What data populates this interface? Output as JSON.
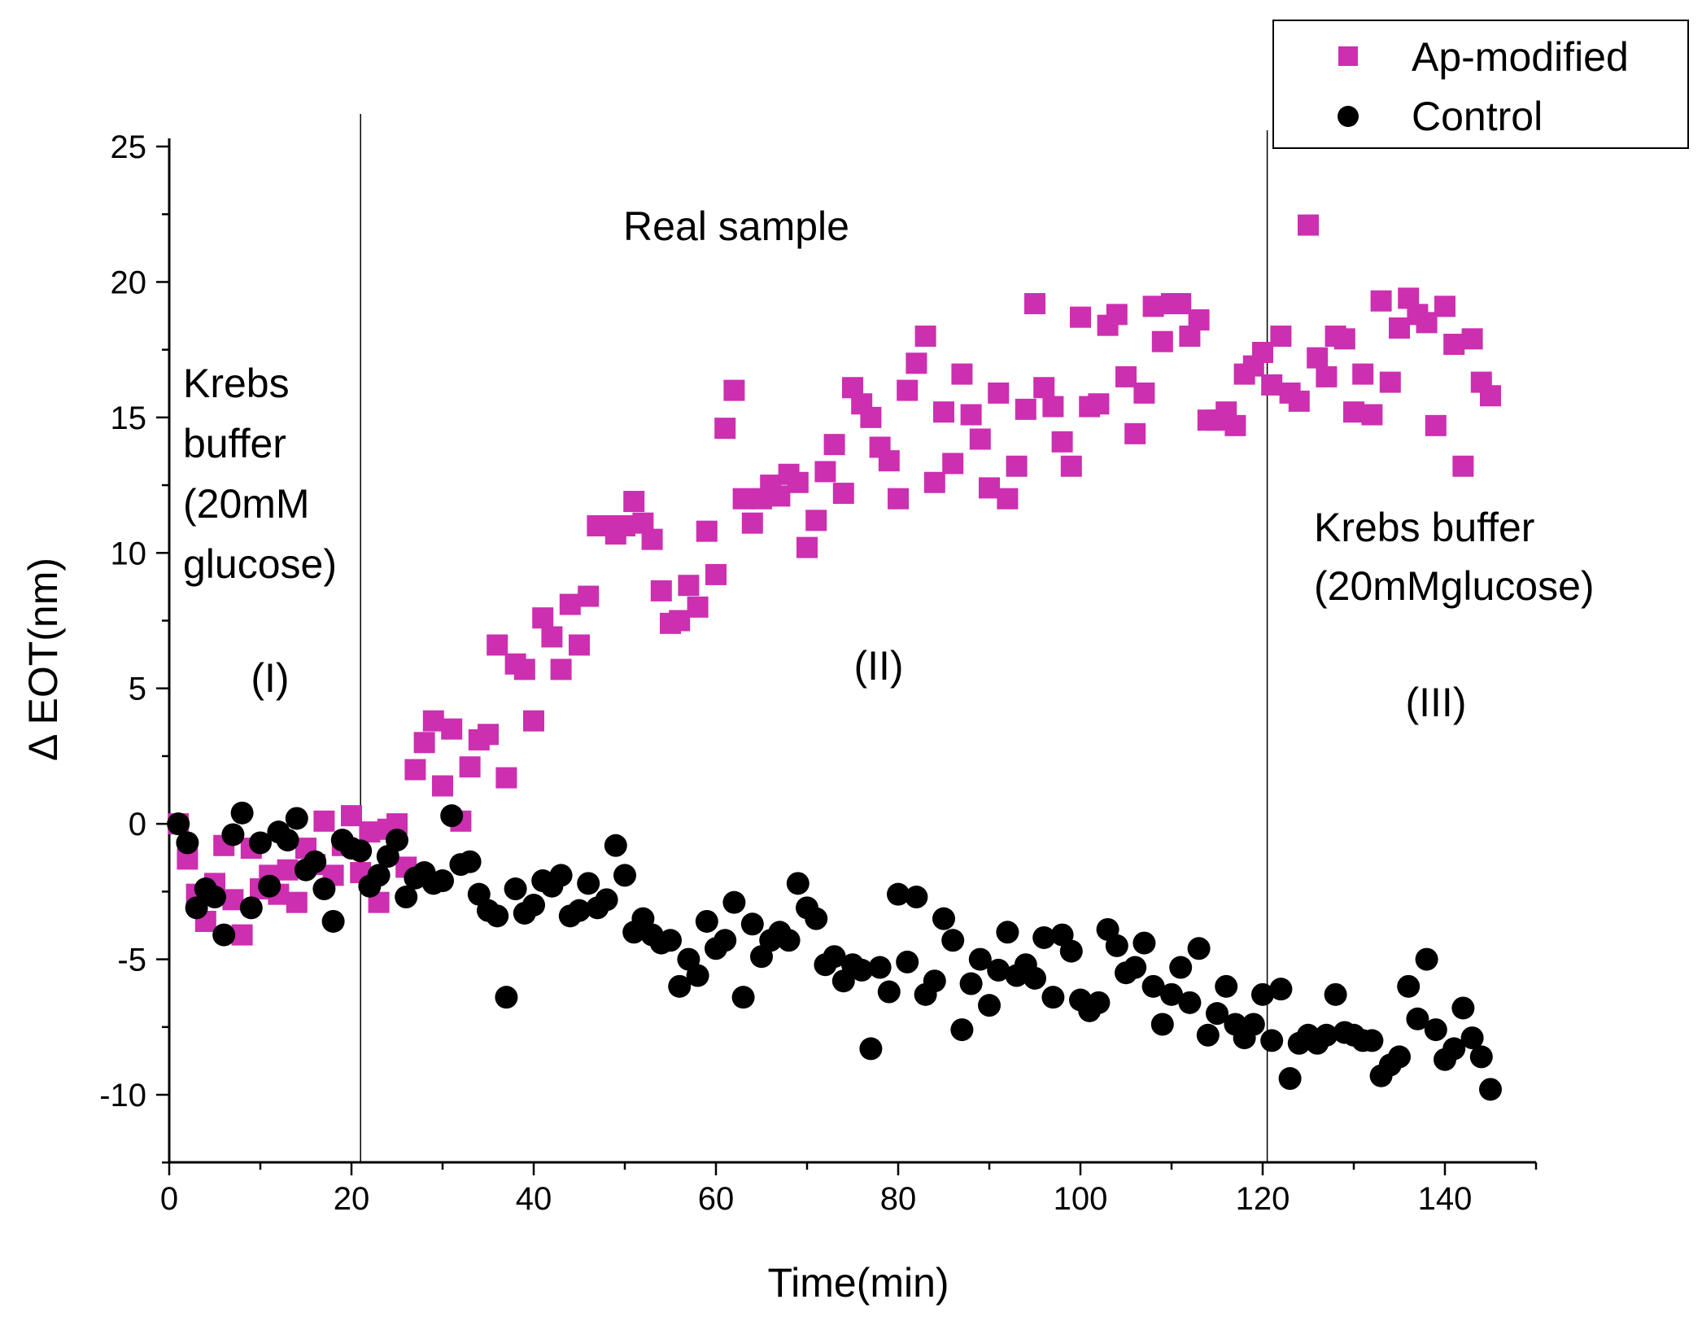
{
  "chart_data": {
    "type": "scatter",
    "title": "",
    "xlabel": "Time(min)",
    "ylabel": "Δ EOT(nm)",
    "xlim": [
      0,
      150
    ],
    "ylim": [
      -12.5,
      25
    ],
    "x_ticks": [
      0,
      20,
      40,
      60,
      80,
      100,
      120,
      140
    ],
    "x_tick_labels": [
      "0",
      "20",
      "40",
      "60",
      "80",
      "100",
      "120",
      "140"
    ],
    "y_ticks": [
      -10,
      -5,
      0,
      5,
      10,
      15,
      20,
      25
    ],
    "y_tick_labels": [
      "-10",
      "-5",
      "0",
      "5",
      "10",
      "15",
      "20",
      "25"
    ],
    "phase_lines": [
      21,
      120.5
    ],
    "legend": {
      "position": "top-right",
      "entries": [
        "Ap-modified",
        "Control"
      ]
    },
    "annotations": {
      "phase1_text": [
        "Krebs",
        "buffer",
        "(20mM",
        "glucose)"
      ],
      "phase1_label": "(I)",
      "phase2_text": "Real sample",
      "phase2_label": "(II)",
      "phase3_text": [
        "Krebs buffer",
        "(20mMglucose)"
      ],
      "phase3_label": "(III)"
    },
    "series": [
      {
        "name": "Ap-modified",
        "marker": "square",
        "color": "#CC2FB0",
        "x": [
          1,
          2,
          3,
          4,
          5,
          6,
          7,
          8,
          9,
          10,
          11,
          12,
          13,
          14,
          15,
          16,
          17,
          18,
          19,
          20,
          21,
          22,
          23,
          24,
          25,
          26,
          27,
          28,
          29,
          30,
          31,
          32,
          33,
          34,
          35,
          36,
          37,
          38,
          39,
          40,
          41,
          42,
          43,
          44,
          45,
          46,
          47,
          48,
          49,
          50,
          51,
          52,
          53,
          54,
          55,
          56,
          57,
          58,
          59,
          60,
          61,
          62,
          63,
          64,
          65,
          66,
          67,
          68,
          69,
          70,
          71,
          72,
          73,
          74,
          75,
          76,
          77,
          78,
          79,
          80,
          81,
          82,
          83,
          84,
          85,
          86,
          87,
          88,
          89,
          90,
          91,
          92,
          93,
          94,
          95,
          96,
          97,
          98,
          99,
          100,
          101,
          102,
          103,
          104,
          105,
          106,
          107,
          108,
          109,
          110,
          111,
          112,
          113,
          114,
          115,
          116,
          117,
          118,
          119,
          120,
          121,
          122,
          123,
          124,
          125,
          126,
          127,
          128,
          129,
          130,
          131,
          132,
          133,
          134,
          135,
          136,
          137,
          138,
          139,
          140,
          141,
          142,
          143,
          144,
          145
        ],
        "y": [
          0,
          -1.3,
          -2.6,
          -3.6,
          -2.2,
          -0.8,
          -2.8,
          -4.1,
          -0.9,
          -2.4,
          -1.9,
          -2.6,
          -1.7,
          -2.9,
          -0.9,
          -1.5,
          0.1,
          -1.9,
          -0.8,
          0.3,
          -1.8,
          -0.3,
          -2.9,
          -0.2,
          0,
          -1.6,
          2,
          3,
          3.8,
          1.4,
          3.5,
          0.1,
          2.1,
          3.1,
          3.3,
          6.6,
          1.7,
          5.9,
          5.7,
          3.8,
          7.6,
          6.9,
          5.7,
          8.1,
          6.6,
          8.4,
          11,
          11,
          10.7,
          11,
          11.9,
          11.1,
          10.5,
          8.6,
          7.4,
          7.5,
          8.8,
          8,
          10.8,
          9.2,
          14.6,
          16,
          12,
          11.1,
          12,
          12.5,
          12.1,
          12.9,
          12.6,
          10.2,
          11.2,
          13,
          14,
          12.2,
          16.1,
          15.5,
          15,
          13.9,
          13.4,
          12,
          16,
          17,
          18,
          12.6,
          15.2,
          13.3,
          16.6,
          15.1,
          14.2,
          12.4,
          15.9,
          12,
          13.2,
          15.3,
          19.2,
          16.1,
          15.4,
          14.1,
          13.2,
          18.7,
          15.4,
          15.5,
          18.4,
          18.8,
          16.5,
          14.4,
          15.9,
          19.1,
          17.8,
          19.2,
          19.2,
          18,
          18.6,
          14.9,
          14.9,
          15.2,
          14.7,
          16.6,
          16.9,
          17.4,
          16.2,
          18,
          15.9,
          15.6,
          22.1,
          17.2,
          16.5,
          18,
          17.9,
          15.2,
          16.6,
          15.1,
          19.3,
          16.3,
          18.3,
          19.4,
          18.8,
          18.5,
          14.7,
          19.1,
          17.7,
          13.2,
          17.9,
          16.3,
          15.8
        ]
      },
      {
        "name": "Control",
        "marker": "circle",
        "color": "#000000",
        "x": [
          1,
          2,
          3,
          4,
          5,
          6,
          7,
          8,
          9,
          10,
          11,
          12,
          13,
          14,
          15,
          16,
          17,
          18,
          19,
          20,
          21,
          22,
          23,
          24,
          25,
          26,
          27,
          28,
          29,
          30,
          31,
          32,
          33,
          34,
          35,
          36,
          37,
          38,
          39,
          40,
          41,
          42,
          43,
          44,
          45,
          46,
          47,
          48,
          49,
          50,
          51,
          52,
          53,
          54,
          55,
          56,
          57,
          58,
          59,
          60,
          61,
          62,
          63,
          64,
          65,
          66,
          67,
          68,
          69,
          70,
          71,
          72,
          73,
          74,
          75,
          76,
          77,
          78,
          79,
          80,
          81,
          82,
          83,
          84,
          85,
          86,
          87,
          88,
          89,
          90,
          91,
          92,
          93,
          94,
          95,
          96,
          97,
          98,
          99,
          100,
          101,
          102,
          103,
          104,
          105,
          106,
          107,
          108,
          109,
          110,
          111,
          112,
          113,
          114,
          115,
          116,
          117,
          118,
          119,
          120,
          121,
          122,
          123,
          124,
          125,
          126,
          127,
          128,
          129,
          130,
          131,
          132,
          133,
          134,
          135,
          136,
          137,
          138,
          139,
          140,
          141,
          142,
          143,
          144,
          145
        ],
        "y": [
          0,
          -0.7,
          -3.1,
          -2.4,
          -2.7,
          -4.1,
          -0.4,
          0.4,
          -3.1,
          -0.7,
          -2.3,
          -0.3,
          -0.6,
          0.2,
          -1.7,
          -1.4,
          -2.4,
          -3.6,
          -0.6,
          -0.9,
          -1,
          -2.3,
          -1.9,
          -1.2,
          -0.6,
          -2.7,
          -2,
          -1.8,
          -2.2,
          -2.1,
          0.3,
          -1.5,
          -1.4,
          -2.6,
          -3.2,
          -3.4,
          -6.4,
          -2.4,
          -3.3,
          -3,
          -2.1,
          -2.3,
          -1.9,
          -3.4,
          -3.2,
          -2.2,
          -3.1,
          -2.8,
          -0.8,
          -1.9,
          -4,
          -3.5,
          -4.1,
          -4.4,
          -4.3,
          -6,
          -5,
          -5.6,
          -3.6,
          -4.6,
          -4.3,
          -2.9,
          -6.4,
          -3.7,
          -4.9,
          -4.3,
          -4,
          -4.3,
          -2.2,
          -3.1,
          -3.5,
          -5.2,
          -4.9,
          -5.8,
          -5.2,
          -5.4,
          -8.3,
          -5.3,
          -6.2,
          -2.6,
          -5.1,
          -2.7,
          -6.3,
          -5.8,
          -3.5,
          -4.3,
          -7.6,
          -5.9,
          -5,
          -6.7,
          -5.4,
          -4,
          -5.6,
          -5.2,
          -5.7,
          -4.2,
          -6.4,
          -4.1,
          -4.7,
          -6.5,
          -6.9,
          -6.6,
          -3.9,
          -4.5,
          -5.5,
          -5.3,
          -4.4,
          -6,
          -7.4,
          -6.3,
          -5.3,
          -6.6,
          -4.6,
          -7.8,
          -7,
          -6,
          -7.4,
          -7.9,
          -7.4,
          -6.3,
          -8,
          -6.1,
          -9.4,
          -8.1,
          -7.8,
          -8.1,
          -7.8,
          -6.3,
          -7.7,
          -7.8,
          -8,
          -8,
          -9.3,
          -8.9,
          -8.6,
          -6,
          -7.2,
          -5,
          -7.6,
          -8.7,
          -8.3,
          -6.8,
          -7.9,
          -8.6,
          -9.8
        ]
      }
    ]
  }
}
